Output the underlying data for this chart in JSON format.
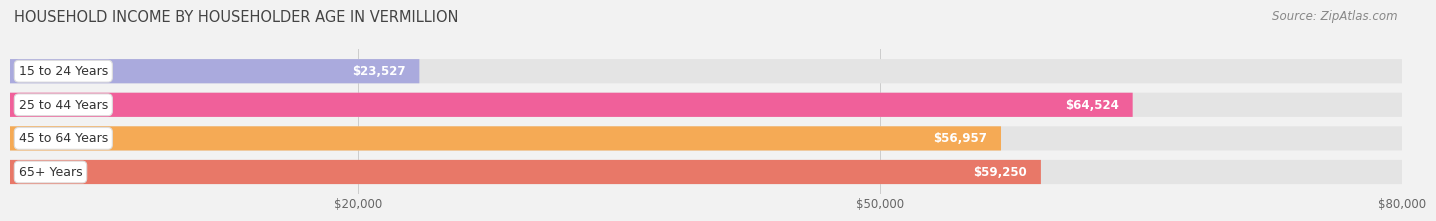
{
  "title": "HOUSEHOLD INCOME BY HOUSEHOLDER AGE IN VERMILLION",
  "source": "Source: ZipAtlas.com",
  "categories": [
    "15 to 24 Years",
    "25 to 44 Years",
    "45 to 64 Years",
    "65+ Years"
  ],
  "values": [
    23527,
    64524,
    56957,
    59250
  ],
  "labels": [
    "$23,527",
    "$64,524",
    "$56,957",
    "$59,250"
  ],
  "bar_colors": [
    "#aaaadd",
    "#f0609a",
    "#f5aa55",
    "#e87868"
  ],
  "background_color": "#f2f2f2",
  "bar_bg_color": "#e4e4e4",
  "xlim": [
    0,
    80000
  ],
  "xticks": [
    20000,
    50000,
    80000
  ],
  "xtick_labels": [
    "$20,000",
    "$50,000",
    "$80,000"
  ],
  "title_fontsize": 10.5,
  "source_fontsize": 8.5,
  "bar_height": 0.72,
  "bar_label_fontsize": 8.5,
  "cat_label_fontsize": 9
}
